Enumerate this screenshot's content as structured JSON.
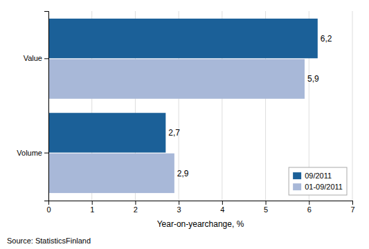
{
  "chart_data": {
    "type": "bar",
    "orientation": "horizontal",
    "categories": [
      "Volume",
      "Value"
    ],
    "series": [
      {
        "name": "09/2011",
        "color": "#1b6098",
        "values": [
          2.7,
          6.2
        ],
        "value_labels": [
          "2,7",
          "6,2"
        ]
      },
      {
        "name": "01-09/2011",
        "color": "#a8b8d8",
        "values": [
          2.9,
          5.9
        ],
        "value_labels": [
          "2,9",
          "5,9"
        ]
      }
    ],
    "xlabel": "Year-on-yearchange, %",
    "xlim": [
      0,
      7
    ],
    "xticks": [
      0,
      1,
      2,
      3,
      4,
      5,
      6,
      7
    ],
    "grid": true,
    "legend": "lower right",
    "data_labels": true,
    "annotations": [
      "Source: StatisticsFinland"
    ]
  }
}
